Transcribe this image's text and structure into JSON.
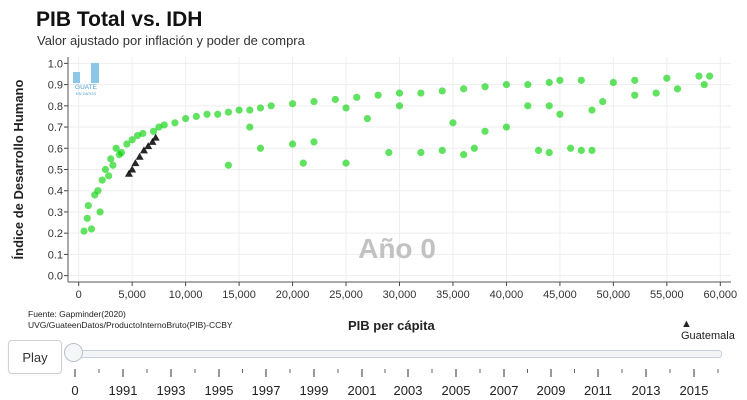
{
  "header": {
    "title": "PIB Total vs. IDH",
    "subtitle": "Valor ajustado por inflación y poder de compra"
  },
  "source_lines": [
    "Fuente: Gapminder(2020)",
    "UVG/GuateenDatos/ProductoInternoBruto(PIB)-CCBY"
  ],
  "logo": {
    "line1": "GUATE",
    "line2": "EN DATOS"
  },
  "legend": {
    "marker": "▲",
    "label": "Guatemala"
  },
  "controls": {
    "play_label": "Play",
    "slider_value": 0,
    "slider_labels": [
      "0",
      "1991",
      "1993",
      "1995",
      "1997",
      "1999",
      "2001",
      "2003",
      "2005",
      "2007",
      "2009",
      "2011",
      "2013",
      "2015"
    ]
  },
  "colors": {
    "points": "#00d000",
    "guatemala": "#000000",
    "year_label": "#c2c2c2",
    "grid": "#eeeeee"
  },
  "chart_data": {
    "type": "scatter",
    "title": "PIB Total vs. IDH",
    "subtitle": "Valor ajustado por inflación y poder de compra",
    "xlabel": "PIB per cápita",
    "ylabel": "Índice de Desarrollo Humano",
    "xlim": [
      -1000,
      61000
    ],
    "ylim": [
      -0.03,
      1.03
    ],
    "xticks": [
      0,
      5000,
      10000,
      15000,
      20000,
      25000,
      30000,
      35000,
      40000,
      45000,
      50000,
      55000,
      60000
    ],
    "xtick_labels": [
      "0",
      "5,000",
      "10,000",
      "15,000",
      "20,000",
      "25,000",
      "30,000",
      "35,000",
      "40,000",
      "45,000",
      "50,000",
      "55,000",
      "60,000"
    ],
    "yticks": [
      0,
      0.1,
      0.2,
      0.3,
      0.4,
      0.5,
      0.6,
      0.7,
      0.8,
      0.9,
      1
    ],
    "ytick_labels": [
      "0.0",
      "0.1",
      "0.2",
      "0.3",
      "0.4",
      "0.5",
      "0.6",
      "0.7",
      "0.8",
      "0.9",
      "1.0"
    ],
    "annotation": "Año 0",
    "grid": true,
    "series": [
      {
        "name": "Países",
        "marker": "circle",
        "points": [
          [
            500,
            0.21
          ],
          [
            800,
            0.27
          ],
          [
            900,
            0.33
          ],
          [
            1200,
            0.22
          ],
          [
            1500,
            0.38
          ],
          [
            1800,
            0.4
          ],
          [
            2000,
            0.3
          ],
          [
            2200,
            0.45
          ],
          [
            2500,
            0.5
          ],
          [
            2800,
            0.47
          ],
          [
            3000,
            0.55
          ],
          [
            3200,
            0.52
          ],
          [
            3500,
            0.6
          ],
          [
            3800,
            0.57
          ],
          [
            4000,
            0.58
          ],
          [
            4500,
            0.62
          ],
          [
            5000,
            0.64
          ],
          [
            5500,
            0.66
          ],
          [
            6000,
            0.67
          ],
          [
            7000,
            0.68
          ],
          [
            7500,
            0.7
          ],
          [
            8000,
            0.71
          ],
          [
            9000,
            0.72
          ],
          [
            10000,
            0.74
          ],
          [
            11000,
            0.75
          ],
          [
            12000,
            0.76
          ],
          [
            13000,
            0.76
          ],
          [
            14000,
            0.77
          ],
          [
            15000,
            0.78
          ],
          [
            16000,
            0.78
          ],
          [
            17000,
            0.79
          ],
          [
            18000,
            0.8
          ],
          [
            20000,
            0.81
          ],
          [
            22000,
            0.82
          ],
          [
            24000,
            0.83
          ],
          [
            26000,
            0.84
          ],
          [
            28000,
            0.85
          ],
          [
            30000,
            0.86
          ],
          [
            32000,
            0.86
          ],
          [
            34000,
            0.87
          ],
          [
            36000,
            0.88
          ],
          [
            38000,
            0.89
          ],
          [
            40000,
            0.9
          ],
          [
            42000,
            0.9
          ],
          [
            44000,
            0.91
          ],
          [
            45000,
            0.92
          ],
          [
            47000,
            0.92
          ],
          [
            50000,
            0.91
          ],
          [
            52000,
            0.92
          ],
          [
            55000,
            0.93
          ],
          [
            58000,
            0.94
          ],
          [
            59000,
            0.94
          ],
          [
            58500,
            0.9
          ],
          [
            56000,
            0.88
          ],
          [
            48000,
            0.78
          ],
          [
            44000,
            0.8
          ],
          [
            42000,
            0.8
          ],
          [
            45000,
            0.76
          ],
          [
            46000,
            0.6
          ],
          [
            47000,
            0.59
          ],
          [
            48000,
            0.59
          ],
          [
            43000,
            0.59
          ],
          [
            44000,
            0.58
          ],
          [
            36000,
            0.57
          ],
          [
            34000,
            0.59
          ],
          [
            32000,
            0.58
          ],
          [
            29000,
            0.58
          ],
          [
            25000,
            0.53
          ],
          [
            21000,
            0.53
          ],
          [
            14000,
            0.52
          ],
          [
            17000,
            0.6
          ],
          [
            20000,
            0.62
          ],
          [
            22000,
            0.63
          ],
          [
            37000,
            0.6
          ],
          [
            38000,
            0.68
          ],
          [
            40000,
            0.7
          ],
          [
            35000,
            0.72
          ],
          [
            27000,
            0.74
          ],
          [
            52000,
            0.85
          ],
          [
            54000,
            0.86
          ],
          [
            49000,
            0.82
          ],
          [
            30000,
            0.8
          ],
          [
            25000,
            0.79
          ],
          [
            16000,
            0.7
          ]
        ]
      },
      {
        "name": "Guatemala",
        "marker": "triangle",
        "points": [
          [
            4700,
            0.48
          ],
          [
            5000,
            0.5
          ],
          [
            5300,
            0.53
          ],
          [
            5700,
            0.56
          ],
          [
            6100,
            0.59
          ],
          [
            6500,
            0.61
          ],
          [
            6900,
            0.63
          ],
          [
            7200,
            0.65
          ]
        ]
      }
    ]
  }
}
